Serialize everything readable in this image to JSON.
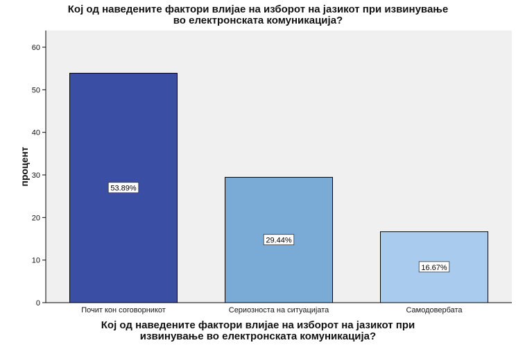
{
  "chart": {
    "title_lines": [
      "Кој од наведените фактори влијае на изборот на јазикот при извинување",
      "во електронската комуникација?"
    ],
    "xlabel_lines": [
      "Кој од наведените фактори влијае на изборот на јазикот при",
      "извинување во електронската комуникација?"
    ],
    "ylabel": "процент"
  },
  "chart_data": {
    "type": "bar",
    "title": "Кој од наведените фактори влијае на изборот на јазикот при извинување во електронската комуникација?",
    "xlabel": "Кој од наведените фактори влијае на изборот на јазикот при извинување во електронската комуникација?",
    "ylabel": "процент",
    "categories": [
      "Почит кон соговорникот",
      "Сериозноста на ситуацијата",
      "Самодовербата"
    ],
    "values": [
      53.89,
      29.44,
      16.67
    ],
    "data_labels": [
      "53.89%",
      "29.44%",
      "16.67%"
    ],
    "ylim": [
      0,
      60
    ],
    "yticks": [
      0,
      10,
      20,
      30,
      40,
      50,
      60
    ],
    "grid": false,
    "legend": "none",
    "colors": {
      "background": "#ffffff",
      "plot_area": "#f0f0f0",
      "bars": [
        "#3a4fa3",
        "#7aaad6",
        "#a9ccee"
      ],
      "bar_stroke": "#000000",
      "axis": "#000000"
    }
  }
}
